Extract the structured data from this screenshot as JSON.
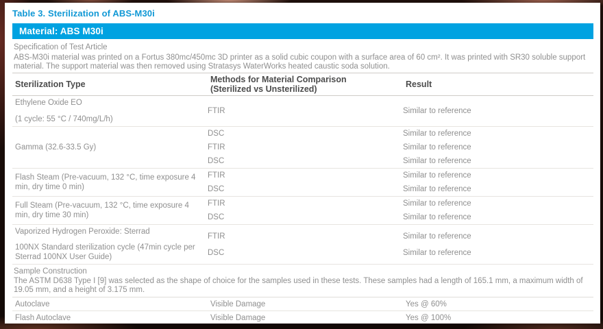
{
  "page": {
    "table_caption": "Table 3. Sterilization of ABS-M30i",
    "banner": "Material: ABS M30i",
    "accent_color": "#00a2e1",
    "caption_color": "#1098d5"
  },
  "spec": {
    "label": "Specification of Test Article",
    "body": "ABS-M30i material was printed on a Fortus 380mc/450mc 3D printer as a solid cubic coupon with a surface area of 60 cm². It was printed with SR30 soluble support material. The support material was then removed using Stratasys WaterWorks heated caustic soda solution."
  },
  "table": {
    "columns": {
      "type": "Sterilization Type",
      "methods_line1": "Methods for Material Comparison",
      "methods_line2": "(Sterilized vs Unsterilized)",
      "result": "Result"
    },
    "groups": [
      {
        "type_lines": [
          "Ethylene Oxide EO",
          "(1 cycle: 55 °C / 740mg/L/h)"
        ],
        "methods": [
          "FTIR"
        ],
        "results": [
          "Similar to reference"
        ]
      },
      {
        "type_lines": [
          "Gamma (32.6-33.5 Gy)"
        ],
        "methods": [
          "DSC",
          "FTIR",
          "DSC"
        ],
        "results": [
          "Similar to reference",
          "Similar to reference",
          "Similar to reference"
        ]
      },
      {
        "type_lines": [
          "Flash Steam (Pre-vacuum, 132 °C, time exposure 4 min, dry time 0 min)"
        ],
        "methods": [
          "FTIR",
          "DSC"
        ],
        "results": [
          "Similar to reference",
          "Similar to reference"
        ]
      },
      {
        "type_lines": [
          "Full Steam (Pre-vacuum, 132 °C, time exposure 4 min, dry time 30 min)"
        ],
        "methods": [
          "FTIR",
          "DSC"
        ],
        "results": [
          "Similar to reference",
          "Similar to reference"
        ]
      },
      {
        "type_lines": [
          "Vaporized Hydrogen Peroxide: Sterrad",
          "100NX Standard sterilization cycle (47min cycle per Sterrad 100NX User Guide)"
        ],
        "methods": [
          "FTIR",
          "DSC"
        ],
        "results": [
          "Similar to reference",
          "Similar to reference"
        ]
      }
    ],
    "sample": {
      "label": "Sample Construction",
      "body": "The ASTM D638 Type I [9] was selected as the shape of choice for the samples used in these tests. These samples had a length of 165.1 mm, a maximum width of 19.05 mm, and a height of 3.175 mm."
    },
    "damage_rows": [
      {
        "type": "Autoclave",
        "method": "Visible Damage",
        "result": "Yes @ 60%"
      },
      {
        "type": "Flash Autoclave",
        "method": "Visible Damage",
        "result": "Yes @ 100%"
      }
    ]
  }
}
